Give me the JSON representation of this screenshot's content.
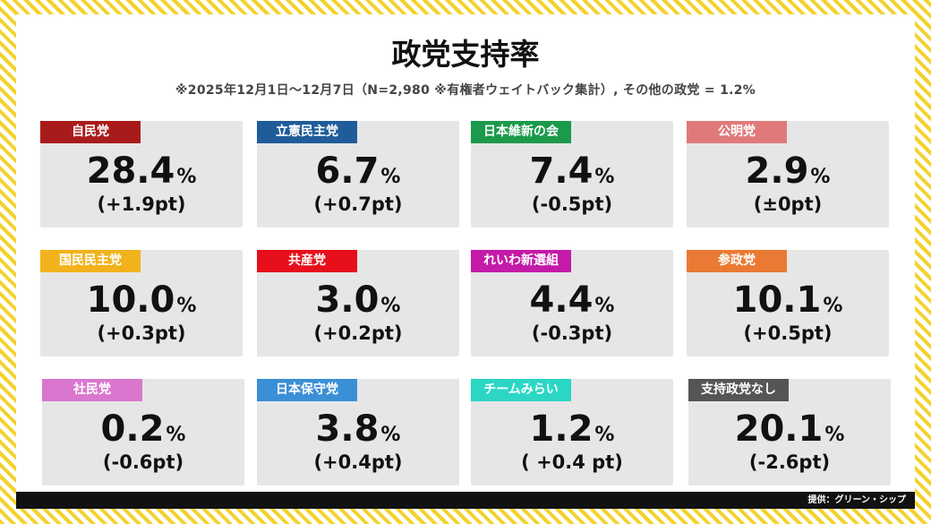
{
  "title": "政党支持率",
  "subtitle": "※2025年12月1日～12月7日（N=2,980 ※有権者ウェイトバック集計）, その他の政党 = 1.2%",
  "percent_symbol": "%",
  "parties": [
    {
      "name": "自民党",
      "value": "28.4",
      "change": "(+1.9pt)",
      "color": "#a91b1b"
    },
    {
      "name": "立憲民主党",
      "value": "6.7",
      "change": "(+0.7pt)",
      "color": "#1f5c99"
    },
    {
      "name": "日本維新の会",
      "value": "7.4",
      "change": "(-0.5pt)",
      "color": "#1b9a4b"
    },
    {
      "name": "公明党",
      "value": "2.9",
      "change": "(±0pt)",
      "color": "#e07a7a"
    },
    {
      "name": "国民民主党",
      "value": "10.0",
      "change": "(+0.3pt)",
      "color": "#f1b21c"
    },
    {
      "name": "共産党",
      "value": "3.0",
      "change": "(+0.2pt)",
      "color": "#e60f1b"
    },
    {
      "name": "れいわ新選組",
      "value": "4.4",
      "change": "(-0.3pt)",
      "color": "#c41aa8"
    },
    {
      "name": "参政党",
      "value": "10.1",
      "change": "(+0.5pt)",
      "color": "#ea7a33"
    },
    {
      "name": "社民党",
      "value": "0.2",
      "change": "(-0.6pt)",
      "color": "#d977cf"
    },
    {
      "name": "日本保守党",
      "value": "3.8",
      "change": "(+0.4pt)",
      "color": "#3b8fd6"
    },
    {
      "name": "チームみらい",
      "value": "1.2",
      "change": "( +0.4 pt)",
      "color": "#2bd6c4"
    },
    {
      "name": "支持政党なし",
      "value": "20.1",
      "change": "(-2.6pt)",
      "color": "#555555"
    }
  ],
  "footer": {
    "credit": "提供：グリーン・シップ"
  }
}
